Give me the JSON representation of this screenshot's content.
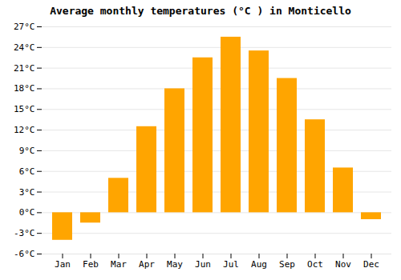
{
  "chart_data": {
    "type": "bar",
    "title": "Average monthly temperatures (°C ) in Monticello",
    "categories": [
      "Jan",
      "Feb",
      "Mar",
      "Apr",
      "May",
      "Jun",
      "Jul",
      "Aug",
      "Sep",
      "Oct",
      "Nov",
      "Dec"
    ],
    "values": [
      -4.0,
      -1.5,
      5.0,
      12.5,
      18.0,
      22.5,
      25.5,
      23.5,
      19.5,
      13.5,
      6.5,
      -1.0
    ],
    "color": "#FFA500",
    "ylim": [
      -6,
      27
    ],
    "yticks": [
      {
        "value": -6,
        "label": "-6°C"
      },
      {
        "value": -3,
        "label": "-3°C"
      },
      {
        "value": 0,
        "label": "0°C"
      },
      {
        "value": 3,
        "label": "3°C"
      },
      {
        "value": 6,
        "label": "6°C"
      },
      {
        "value": 9,
        "label": "9°C"
      },
      {
        "value": 12,
        "label": "12°C"
      },
      {
        "value": 15,
        "label": "15°C"
      },
      {
        "value": 18,
        "label": "18°C"
      },
      {
        "value": 21,
        "label": "21°C"
      },
      {
        "value": 24,
        "label": "24°C"
      },
      {
        "value": 27,
        "label": "27°C"
      }
    ],
    "grid": true
  }
}
